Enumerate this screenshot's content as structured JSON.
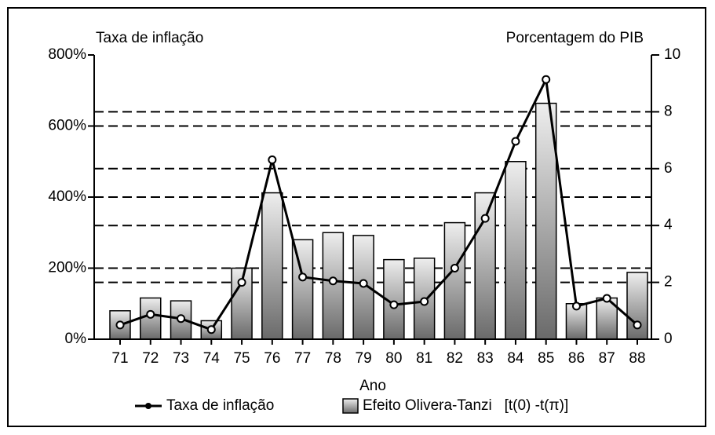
{
  "chart_data": {
    "type": "bar-line",
    "ylabel": "Taxa de inflação",
    "y2label": "Porcentagem do PIB",
    "xlabel": "Ano",
    "categories": [
      "71",
      "72",
      "73",
      "74",
      "75",
      "76",
      "77",
      "78",
      "79",
      "80",
      "81",
      "82",
      "83",
      "84",
      "85",
      "86",
      "87",
      "88"
    ],
    "series": [
      {
        "name": "Taxa de inflação",
        "type": "line",
        "color": "#000000",
        "axis": "y",
        "values": [
          40,
          70,
          58,
          27,
          160,
          505,
          175,
          164,
          157,
          97,
          106,
          200,
          340,
          557,
          731,
          93,
          115,
          40
        ]
      },
      {
        "name": "Efeito Olivera-Tanzi   [t(0) -t(π)]",
        "type": "bar",
        "color": "#6a6a6a",
        "axis": "y2",
        "values": [
          1.0,
          1.45,
          1.35,
          0.65,
          2.5,
          5.15,
          3.5,
          3.75,
          3.65,
          2.8,
          2.85,
          4.1,
          5.15,
          6.25,
          8.3,
          1.25,
          1.45,
          2.35
        ]
      }
    ],
    "ylim": [
      0,
      800
    ],
    "yticks": [
      {
        "value": 0,
        "label": "0%"
      },
      {
        "value": 200,
        "label": "200%"
      },
      {
        "value": 400,
        "label": "400%"
      },
      {
        "value": 600,
        "label": "600%"
      },
      {
        "value": 800,
        "label": "800%"
      }
    ],
    "y2lim": [
      0,
      10
    ],
    "y2ticks": [
      0,
      2,
      4,
      6,
      8,
      10
    ],
    "grid": true,
    "legend": "bottom"
  }
}
